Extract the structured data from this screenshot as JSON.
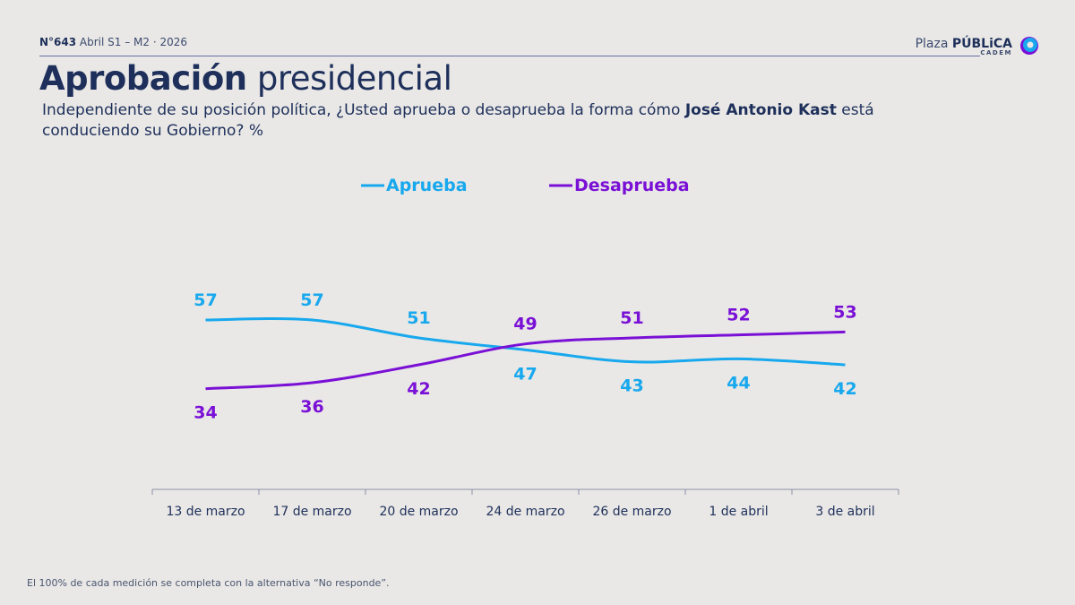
{
  "header": {
    "number": "N°643",
    "edition": "Abril S1 – M2 · 2026"
  },
  "logo": {
    "text_light": "Plaza",
    "text_bold": "PÚBLiCA",
    "sub": "CADEM"
  },
  "title": {
    "bold": "Aprobación",
    "light": "presidencial"
  },
  "question": {
    "before": "Independiente de su posición política, ¿Usted aprueba o desaprueba la forma cómo ",
    "name": "José Antonio Kast",
    "after": " está conduciendo su Gobierno? %"
  },
  "footnote": "El 100% de cada medición se completa con la alternativa “No responde”.",
  "chart_data": {
    "type": "line",
    "categories": [
      "13 de marzo",
      "17 de marzo",
      "20 de marzo",
      "24 de marzo",
      "26 de marzo",
      "1 de abril",
      "3 de abril"
    ],
    "series": [
      {
        "name": "Aprueba",
        "color": "#18a8ee",
        "values": [
          57,
          57,
          51,
          47,
          43,
          44,
          42
        ]
      },
      {
        "name": "Desaprueba",
        "color": "#7a10d6",
        "values": [
          34,
          36,
          42,
          49,
          51,
          52,
          53
        ]
      }
    ],
    "legend": "top-center",
    "grid": false,
    "ylim": [
      0,
      60
    ]
  }
}
